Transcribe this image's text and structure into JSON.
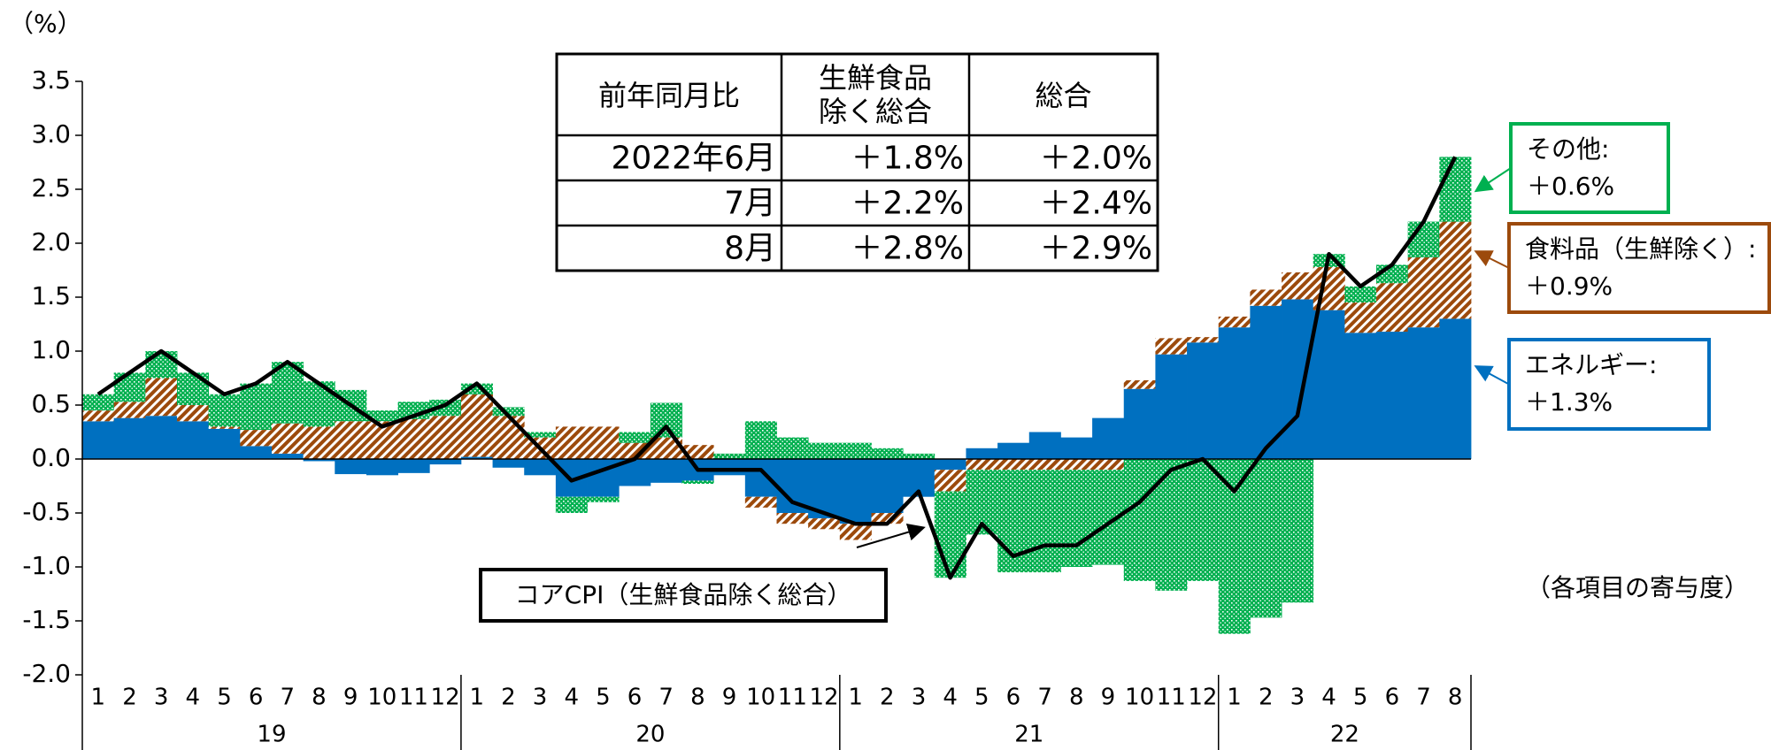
{
  "chart_data": {
    "type": "bar",
    "stacked": true,
    "y_unit_label": "（%）",
    "note": "（各項目の寄与度）",
    "categories": [
      1,
      2,
      3,
      4,
      5,
      6,
      7,
      8,
      9,
      10,
      11,
      12,
      1,
      2,
      3,
      4,
      5,
      6,
      7,
      8,
      9,
      10,
      11,
      12,
      1,
      2,
      3,
      4,
      5,
      6,
      7,
      8,
      9,
      10,
      11,
      12,
      1,
      2,
      3,
      4,
      5,
      6,
      7,
      8
    ],
    "year_labels": [
      "19",
      "20",
      "21",
      "22"
    ],
    "ylim": [
      -2.0,
      3.5
    ],
    "yticks": [
      {
        "value": 3.5,
        "label": "3.5"
      },
      {
        "value": 3,
        "label": "3.0"
      },
      {
        "value": 2.5,
        "label": "2.5"
      },
      {
        "value": 2,
        "label": "2.0"
      },
      {
        "value": 1.5,
        "label": "1.5"
      },
      {
        "value": 1,
        "label": "1.0"
      },
      {
        "value": 0.5,
        "label": "0.5"
      },
      {
        "value": 0,
        "label": "0.0"
      },
      {
        "value": -0.5,
        "label": "-0.5"
      },
      {
        "value": -1,
        "label": "-1.0"
      },
      {
        "value": -1.5,
        "label": "-1.5"
      },
      {
        "value": -2,
        "label": "-2.0"
      }
    ],
    "series": [
      {
        "name": "エネルギー:",
        "label_value": "＋1.3%",
        "color": "#0070c0",
        "fill": "solid",
        "values": [
          0.35,
          0.38,
          0.4,
          0.35,
          0.28,
          0.12,
          0.05,
          -0.02,
          -0.14,
          -0.15,
          -0.13,
          -0.05,
          0.02,
          -0.08,
          -0.15,
          -0.35,
          -0.35,
          -0.25,
          -0.22,
          -0.2,
          -0.15,
          -0.35,
          -0.5,
          -0.55,
          -0.6,
          -0.5,
          -0.35,
          -0.1,
          0.1,
          0.15,
          0.25,
          0.2,
          0.38,
          0.65,
          0.97,
          1.08,
          1.22,
          1.42,
          1.48,
          1.38,
          1.17,
          1.18,
          1.22,
          1.3
        ]
      },
      {
        "name": "食料品（生鮮除く）:",
        "label_value": "＋0.9%",
        "color": "#9c4a0c",
        "fill": "hatch",
        "values": [
          0.1,
          0.15,
          0.35,
          0.15,
          0.02,
          0.15,
          0.28,
          0.3,
          0.35,
          0.35,
          0.37,
          0.4,
          0.58,
          0.4,
          0.2,
          0.3,
          0.3,
          0.15,
          0.2,
          0.13,
          0.0,
          -0.1,
          -0.1,
          -0.1,
          -0.15,
          -0.1,
          0.0,
          -0.2,
          -0.1,
          -0.1,
          -0.1,
          -0.1,
          -0.1,
          0.08,
          0.15,
          0.05,
          0.1,
          0.15,
          0.25,
          0.4,
          0.28,
          0.45,
          0.65,
          0.9
        ]
      },
      {
        "name": "その他:",
        "label_value": "＋0.6%",
        "color": "#00b050",
        "fill": "dots",
        "values": [
          0.15,
          0.27,
          0.25,
          0.3,
          0.3,
          0.43,
          0.57,
          0.42,
          0.29,
          0.1,
          0.16,
          0.15,
          0.1,
          0.08,
          0.05,
          -0.15,
          -0.05,
          0.1,
          0.32,
          -0.03,
          0.05,
          0.35,
          0.2,
          0.15,
          0.15,
          0.1,
          0.05,
          -0.8,
          -0.6,
          -0.95,
          -0.95,
          -0.9,
          -0.88,
          -1.13,
          -1.22,
          -1.13,
          -1.62,
          -1.47,
          -1.33,
          0.12,
          0.15,
          0.17,
          0.33,
          0.6
        ]
      },
      {
        "name": "コアCPI（生鮮食品除く総合）",
        "type": "line",
        "color": "#000000",
        "values": [
          0.6,
          0.8,
          1.0,
          0.8,
          0.6,
          0.7,
          0.9,
          0.7,
          0.5,
          0.3,
          0.4,
          0.5,
          0.7,
          0.4,
          0.1,
          -0.2,
          -0.1,
          0.0,
          0.3,
          -0.1,
          -0.1,
          -0.1,
          -0.4,
          -0.5,
          -0.6,
          -0.6,
          -0.3,
          -1.1,
          -0.6,
          -0.9,
          -0.8,
          -0.8,
          -0.6,
          -0.4,
          -0.1,
          0.0,
          -0.3,
          0.1,
          0.4,
          1.9,
          1.6,
          1.8,
          2.2,
          2.8
        ]
      }
    ],
    "table": {
      "header": [
        "前年同月比",
        [
          "生鮮食品",
          "除く総合"
        ],
        "総合"
      ],
      "rows": [
        [
          "2022年6月",
          "＋1.8%",
          "＋2.0%"
        ],
        [
          "7月",
          "＋2.2%",
          "＋2.4%"
        ],
        [
          "8月",
          "＋2.8%",
          "＋2.9%"
        ]
      ]
    }
  }
}
